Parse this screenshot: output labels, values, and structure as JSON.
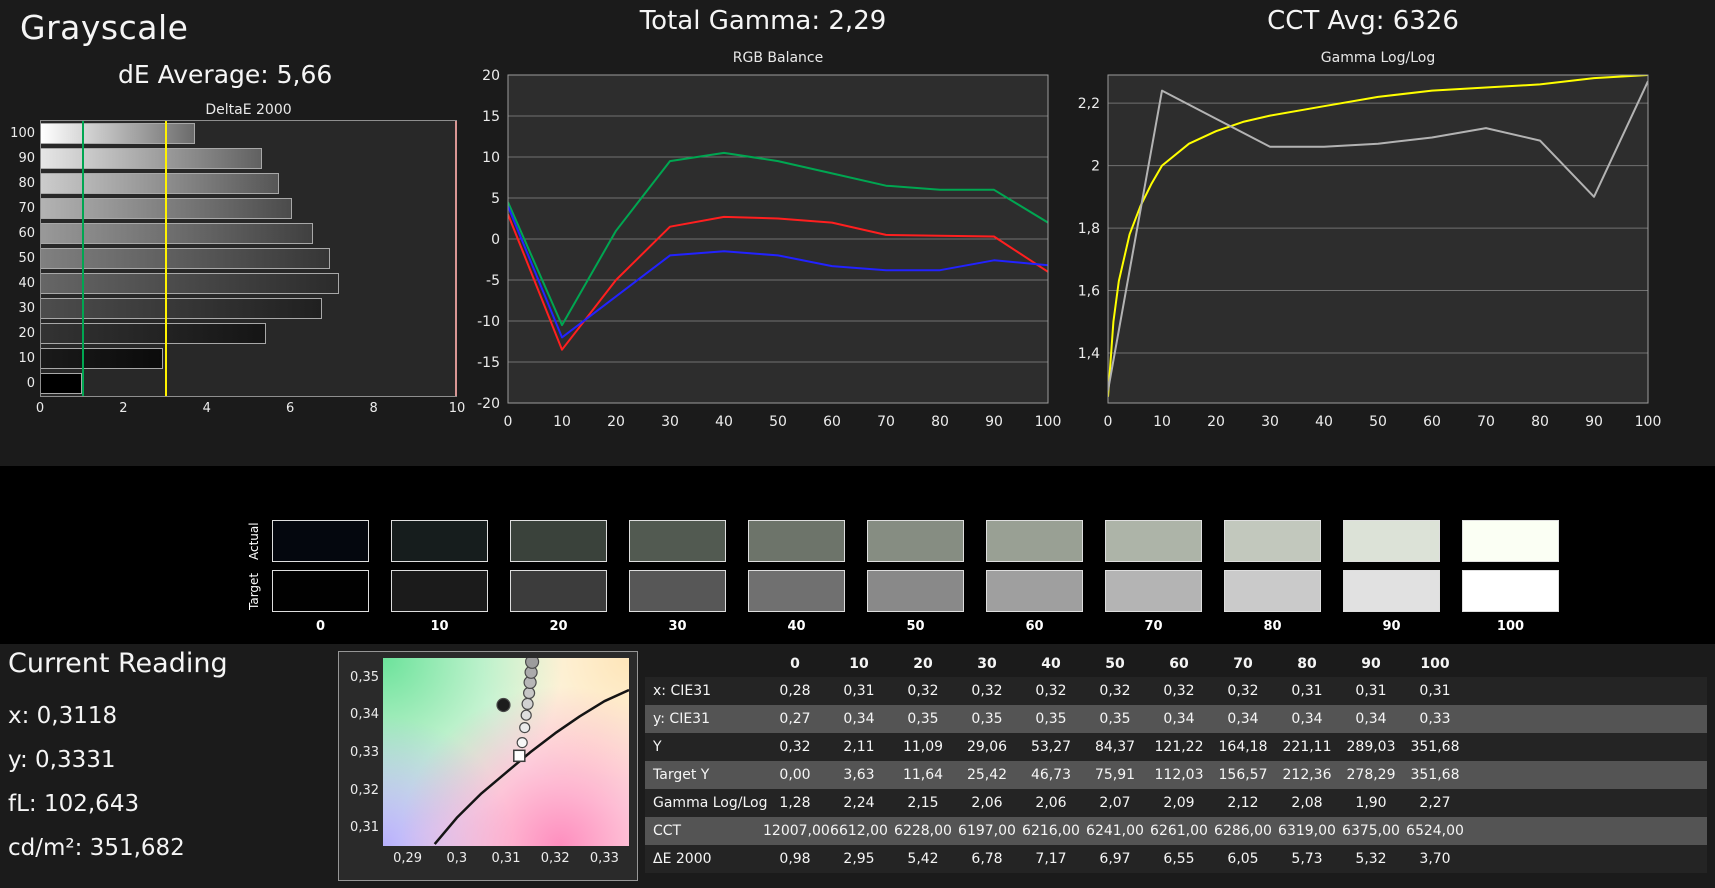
{
  "page": {
    "bg": "#1b1b1b",
    "strip_bg": "#000000",
    "text_color": "#f5f5f5"
  },
  "grayscale_panel": {
    "title": "Grayscale",
    "de_average": "dE Average: 5,66"
  },
  "rgb_panel": {
    "header": "Total Gamma: 2,29"
  },
  "cct_panel": {
    "header": "CCT Avg: 6326"
  },
  "current_reading": {
    "title": "Current Reading",
    "lines": [
      "x: 0,3118",
      "y: 0,3331",
      "fL: 102,643",
      "cd/m²: 351,682"
    ]
  },
  "swatch_strip": {
    "row_labels": [
      "Actual",
      "Target"
    ],
    "column_labels": [
      "0",
      "10",
      "20",
      "30",
      "40",
      "50",
      "60",
      "70",
      "80",
      "90",
      "100"
    ],
    "actual_colors": [
      "#04070e",
      "#161d1d",
      "#3a423b",
      "#525a51",
      "#6d746a",
      "#868d82",
      "#99a094",
      "#adb4a8",
      "#c2c8bd",
      "#dce2d7",
      "#fbfff4"
    ],
    "target_colors": [
      "#010101",
      "#1b1b1b",
      "#3c3c3c",
      "#575757",
      "#707070",
      "#898989",
      "#9f9f9f",
      "#b4b4b4",
      "#cacaca",
      "#e1e1e1",
      "#ffffff"
    ]
  },
  "table": {
    "columns": [
      "0",
      "10",
      "20",
      "30",
      "40",
      "50",
      "60",
      "70",
      "80",
      "90",
      "100"
    ],
    "rows": [
      {
        "label": "x: CIE31",
        "values": [
          "0,28",
          "0,31",
          "0,32",
          "0,32",
          "0,32",
          "0,32",
          "0,32",
          "0,32",
          "0,31",
          "0,31",
          "0,31"
        ]
      },
      {
        "label": "y: CIE31",
        "values": [
          "0,27",
          "0,34",
          "0,35",
          "0,35",
          "0,35",
          "0,35",
          "0,34",
          "0,34",
          "0,34",
          "0,34",
          "0,33"
        ]
      },
      {
        "label": "Y",
        "values": [
          "0,32",
          "2,11",
          "11,09",
          "29,06",
          "53,27",
          "84,37",
          "121,22",
          "164,18",
          "221,11",
          "289,03",
          "351,68"
        ]
      },
      {
        "label": "Target Y",
        "values": [
          "0,00",
          "3,63",
          "11,64",
          "25,42",
          "46,73",
          "75,91",
          "112,03",
          "156,57",
          "212,36",
          "278,29",
          "351,68"
        ]
      },
      {
        "label": "Gamma Log/Log",
        "values": [
          "1,28",
          "2,24",
          "2,15",
          "2,06",
          "2,06",
          "2,07",
          "2,09",
          "2,12",
          "2,08",
          "1,90",
          "2,27"
        ]
      },
      {
        "label": "CCT",
        "values": [
          "12007,00",
          "6612,00",
          "6228,00",
          "6197,00",
          "6216,00",
          "6241,00",
          "6261,00",
          "6286,00",
          "6319,00",
          "6375,00",
          "6524,00"
        ]
      },
      {
        "label": "ΔE 2000",
        "values": [
          "0,98",
          "2,95",
          "5,42",
          "6,78",
          "7,17",
          "6,97",
          "6,55",
          "6,05",
          "5,73",
          "5,32",
          "3,70"
        ]
      }
    ]
  },
  "chart_data": [
    {
      "id": "deltae",
      "type": "bar",
      "title": "DeltaE 2000",
      "orientation": "horizontal",
      "categories": [
        "100",
        "90",
        "80",
        "70",
        "60",
        "50",
        "40",
        "30",
        "20",
        "10",
        "0"
      ],
      "values": [
        3.7,
        5.32,
        5.73,
        6.05,
        6.55,
        6.97,
        7.17,
        6.78,
        5.42,
        2.95,
        0.98
      ],
      "xlim": [
        0,
        10
      ],
      "xticks": [
        0,
        2,
        4,
        6,
        8,
        10
      ],
      "reference_lines": [
        {
          "value": 1,
          "color": "#00a651",
          "name": "good-threshold"
        },
        {
          "value": 3,
          "color": "#fff200",
          "name": "warn-threshold"
        },
        {
          "value": 10,
          "color": "#d99694",
          "name": "scale-max"
        }
      ]
    },
    {
      "id": "rgb_balance",
      "type": "line",
      "title": "RGB Balance",
      "x": [
        0,
        10,
        20,
        30,
        40,
        50,
        60,
        70,
        80,
        90,
        100
      ],
      "xticks": [
        0,
        10,
        20,
        30,
        40,
        50,
        60,
        70,
        80,
        90,
        100
      ],
      "xlim": [
        0,
        100
      ],
      "ylim": [
        -20,
        20
      ],
      "yticks": [
        20,
        15,
        10,
        5,
        0,
        -5,
        -10,
        -15,
        -20
      ],
      "ytick_labels": [
        "20",
        "15",
        "10",
        "5",
        "0",
        "-5",
        "-10",
        "-15",
        "-20"
      ],
      "series": [
        {
          "name": "Red",
          "color": "#ff1f1f",
          "values": [
            3,
            -13.5,
            -5,
            1.5,
            2.7,
            2.5,
            2,
            0.5,
            0.4,
            0.3,
            -4
          ]
        },
        {
          "name": "Green",
          "color": "#00a651",
          "values": [
            4.5,
            -10.5,
            1,
            9.5,
            10.5,
            9.5,
            8,
            6.5,
            6,
            6,
            2
          ]
        },
        {
          "name": "Blue",
          "color": "#2222ff",
          "values": [
            4,
            -12,
            -7,
            -2,
            -1.5,
            -2,
            -3.3,
            -3.8,
            -3.8,
            -2.6,
            -3.2
          ]
        }
      ]
    },
    {
      "id": "gamma_loglog",
      "type": "line",
      "title": "Gamma Log/Log",
      "xlim": [
        0,
        100
      ],
      "xticks": [
        0,
        10,
        20,
        30,
        40,
        50,
        60,
        70,
        80,
        90,
        100
      ],
      "ylim": [
        1.24,
        2.29
      ],
      "yticks": [
        2.2,
        2.0,
        1.8,
        1.6,
        1.4
      ],
      "ytick_labels": [
        "2,2",
        "2",
        "1,8",
        "1,6",
        "1,4"
      ],
      "series": [
        {
          "name": "Target",
          "color": "#ffff00",
          "x": [
            0,
            1,
            2,
            4,
            6,
            8,
            10,
            15,
            20,
            25,
            30,
            40,
            50,
            60,
            70,
            80,
            90,
            100
          ],
          "values": [
            1.26,
            1.5,
            1.63,
            1.78,
            1.87,
            1.94,
            2.0,
            2.07,
            2.11,
            2.14,
            2.16,
            2.19,
            2.22,
            2.24,
            2.25,
            2.26,
            2.28,
            2.29
          ]
        },
        {
          "name": "Measured",
          "color": "#b3b3b3",
          "x": [
            0,
            10,
            20,
            30,
            40,
            50,
            60,
            70,
            80,
            90,
            100
          ],
          "values": [
            1.28,
            2.24,
            2.15,
            2.06,
            2.06,
            2.07,
            2.09,
            2.12,
            2.08,
            1.9,
            2.27
          ]
        }
      ]
    },
    {
      "id": "cie_detail",
      "type": "scatter",
      "xlim": [
        0.285,
        0.335
      ],
      "ylim": [
        0.305,
        0.355
      ],
      "xticks": [
        0.29,
        0.3,
        0.31,
        0.32,
        0.33
      ],
      "xtick_labels": [
        "0,29",
        "0,3",
        "0,31",
        "0,32",
        "0,33"
      ],
      "yticks": [
        0.35,
        0.34,
        0.33,
        0.32,
        0.31
      ],
      "ytick_labels": [
        "0,35",
        "0,34",
        "0,33",
        "0,32",
        "0,31"
      ],
      "target_marker": {
        "x": 0.3127,
        "y": 0.329
      },
      "points": [
        {
          "x": 0.3133,
          "y": 0.3325,
          "r": 5,
          "fill": "#f7f7f7"
        },
        {
          "x": 0.3138,
          "y": 0.3365,
          "r": 5,
          "fill": "#ebebeb"
        },
        {
          "x": 0.3141,
          "y": 0.3398,
          "r": 5,
          "fill": "#dedede"
        },
        {
          "x": 0.3144,
          "y": 0.3428,
          "r": 5.5,
          "fill": "#d2d2d2"
        },
        {
          "x": 0.3147,
          "y": 0.3457,
          "r": 5.5,
          "fill": "#c6c6c6"
        },
        {
          "x": 0.3149,
          "y": 0.3485,
          "r": 6,
          "fill": "#b7b7b7"
        },
        {
          "x": 0.3151,
          "y": 0.3512,
          "r": 6,
          "fill": "#ababab"
        },
        {
          "x": 0.3153,
          "y": 0.354,
          "r": 6.5,
          "fill": "#9c9c9c"
        },
        {
          "x": 0.3095,
          "y": 0.3425,
          "r": 6.5,
          "fill": "#1c1c1c"
        }
      ],
      "locus": [
        [
          0.2955,
          0.3055
        ],
        [
          0.3,
          0.3125
        ],
        [
          0.305,
          0.319
        ],
        [
          0.31,
          0.3245
        ],
        [
          0.315,
          0.33
        ],
        [
          0.32,
          0.335
        ],
        [
          0.325,
          0.3395
        ],
        [
          0.33,
          0.3435
        ],
        [
          0.335,
          0.3465
        ]
      ]
    }
  ]
}
